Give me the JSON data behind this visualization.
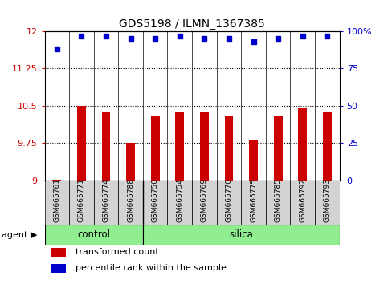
{
  "title": "GDS5198 / ILMN_1367385",
  "samples": [
    "GSM665761",
    "GSM665771",
    "GSM665774",
    "GSM665788",
    "GSM665750",
    "GSM665754",
    "GSM665769",
    "GSM665770",
    "GSM665775",
    "GSM665785",
    "GSM665792",
    "GSM665793"
  ],
  "transformed_counts": [
    9.02,
    10.5,
    10.38,
    9.76,
    10.3,
    10.38,
    10.38,
    10.28,
    9.8,
    10.3,
    10.46,
    10.38
  ],
  "percentile_ranks": [
    88,
    97,
    97,
    95,
    95,
    97,
    95,
    95,
    93,
    95,
    97,
    97
  ],
  "n_control": 4,
  "n_silica": 8,
  "bar_color": "#CC0000",
  "dot_color": "#0000CC",
  "group_color": "#90EE90",
  "sample_box_color": "#d3d3d3",
  "ylim_left": [
    9,
    12
  ],
  "ylim_right": [
    0,
    100
  ],
  "yticks_left": [
    9,
    9.75,
    10.5,
    11.25,
    12
  ],
  "yticks_right": [
    0,
    25,
    50,
    75,
    100
  ],
  "ytick_labels_left": [
    "9",
    "9.75",
    "10.5",
    "11.25",
    "12"
  ],
  "ytick_labels_right": [
    "0",
    "25",
    "50",
    "75",
    "100%"
  ],
  "left_color": "#CC0000",
  "right_color": "#0000CC",
  "legend_bar_label": "transformed count",
  "legend_dot_label": "percentile rank within the sample",
  "agent_label": "agent"
}
